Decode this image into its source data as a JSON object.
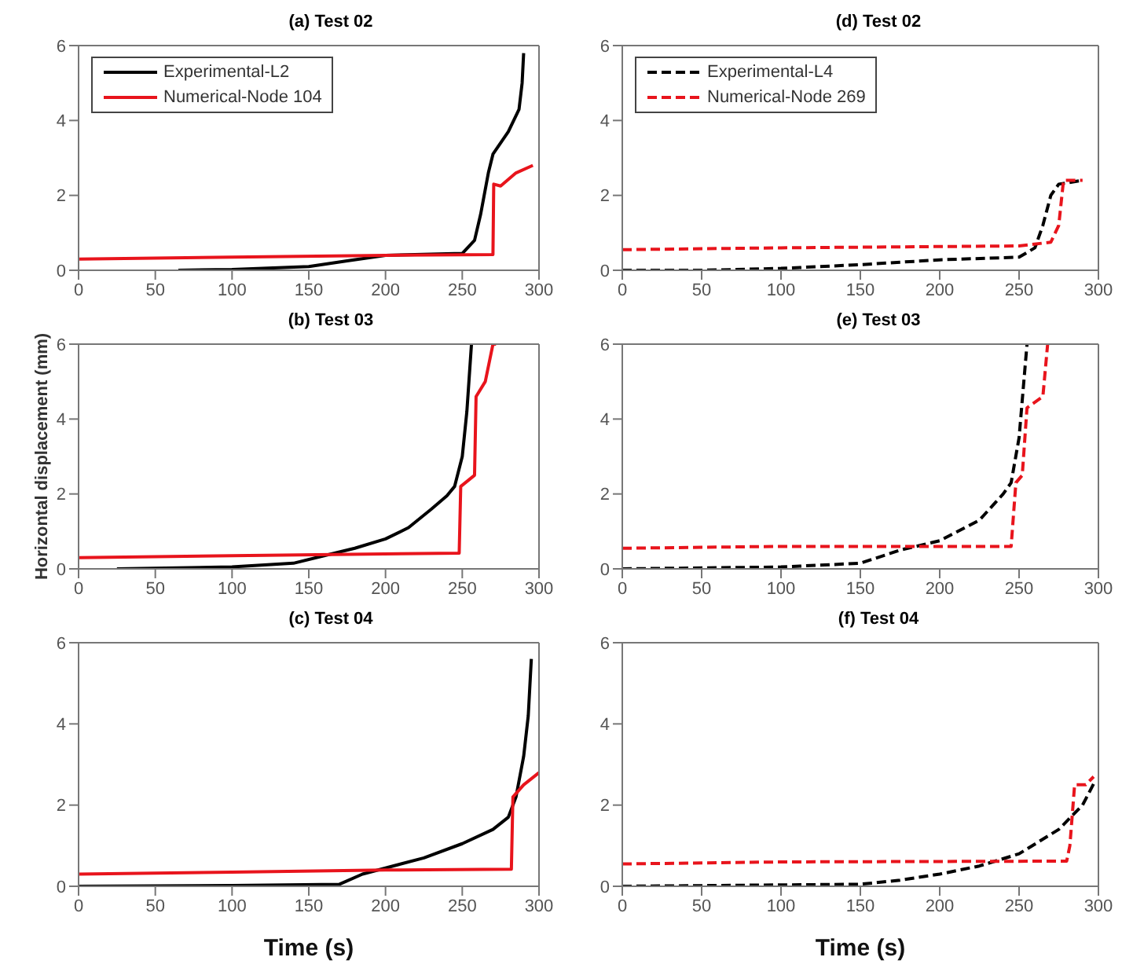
{
  "chart_data": [
    {
      "type": "line",
      "title": "(a) Test 02",
      "xlim": [
        0,
        300
      ],
      "xticks": [
        0,
        50,
        100,
        150,
        200,
        250,
        300
      ],
      "ylim": [
        0,
        6
      ],
      "yticks": [
        0,
        2,
        4,
        6
      ],
      "grid": false,
      "legend": "top left",
      "series": [
        {
          "name": "Experimental-L2",
          "color": "#000000",
          "line_style": "solid",
          "x": [
            65,
            100,
            150,
            175,
            200,
            250,
            258,
            262,
            267,
            270,
            280,
            287,
            289,
            290
          ],
          "values": [
            0,
            0.02,
            0.1,
            0.25,
            0.4,
            0.45,
            0.8,
            1.5,
            2.6,
            3.1,
            3.7,
            4.3,
            5.0,
            5.8
          ]
        },
        {
          "name": "Numerical-Node 104",
          "color": "#e8141c",
          "line_style": "solid",
          "x": [
            0,
            100,
            200,
            270,
            270.5,
            275,
            285,
            296
          ],
          "values": [
            0.3,
            0.35,
            0.4,
            0.42,
            2.3,
            2.25,
            2.6,
            2.8
          ]
        }
      ]
    },
    {
      "type": "line",
      "title": "(b) Test 03",
      "ylabel": "Horizontal displacement (mm)",
      "xlim": [
        0,
        300
      ],
      "xticks": [
        0,
        50,
        100,
        150,
        200,
        250,
        300
      ],
      "ylim": [
        0,
        6
      ],
      "yticks": [
        0,
        2,
        4,
        6
      ],
      "grid": false,
      "series": [
        {
          "color": "#000000",
          "line_style": "solid",
          "x": [
            25,
            100,
            140,
            160,
            180,
            200,
            215,
            230,
            240,
            245,
            250,
            253,
            256
          ],
          "values": [
            0,
            0.05,
            0.15,
            0.35,
            0.55,
            0.8,
            1.1,
            1.6,
            1.95,
            2.2,
            3.0,
            4.2,
            6.0
          ]
        },
        {
          "color": "#e8141c",
          "line_style": "solid",
          "x": [
            0,
            100,
            248,
            249,
            255,
            258,
            259,
            265,
            270,
            272
          ],
          "values": [
            0.3,
            0.35,
            0.42,
            2.2,
            2.4,
            2.5,
            4.6,
            5.0,
            6.0,
            6.0
          ]
        }
      ]
    },
    {
      "type": "line",
      "title": "(c) Test 04",
      "xlabel": "Time (s)",
      "xlim": [
        0,
        300
      ],
      "xticks": [
        0,
        50,
        100,
        150,
        200,
        250,
        300
      ],
      "ylim": [
        0,
        6
      ],
      "yticks": [
        0,
        2,
        4,
        6
      ],
      "grid": false,
      "series": [
        {
          "color": "#000000",
          "line_style": "solid",
          "x": [
            0,
            100,
            170,
            185,
            200,
            225,
            250,
            270,
            280,
            285,
            290,
            293,
            295
          ],
          "values": [
            0,
            0.02,
            0.05,
            0.3,
            0.45,
            0.7,
            1.05,
            1.4,
            1.7,
            2.2,
            3.2,
            4.2,
            5.6
          ]
        },
        {
          "color": "#e8141c",
          "line_style": "solid",
          "x": [
            0,
            100,
            200,
            282,
            283,
            290,
            300
          ],
          "values": [
            0.3,
            0.35,
            0.4,
            0.42,
            2.2,
            2.5,
            2.8
          ]
        }
      ]
    },
    {
      "type": "line",
      "title": "(d) Test 02",
      "xlim": [
        0,
        300
      ],
      "xticks": [
        0,
        50,
        100,
        150,
        200,
        250,
        300
      ],
      "ylim": [
        0,
        6
      ],
      "yticks": [
        0,
        2,
        4,
        6
      ],
      "grid": false,
      "legend": "top left",
      "series": [
        {
          "name": "Experimental-L4",
          "color": "#000000",
          "line_style": "dashed",
          "x": [
            0,
            50,
            100,
            150,
            200,
            250,
            260,
            265,
            270,
            275,
            290
          ],
          "values": [
            0,
            0,
            0.05,
            0.15,
            0.28,
            0.35,
            0.6,
            1.2,
            2.0,
            2.3,
            2.4
          ]
        },
        {
          "name": "Numerical-Node 269",
          "color": "#e8141c",
          "line_style": "dashed",
          "x": [
            0,
            100,
            250,
            270,
            275,
            278,
            290
          ],
          "values": [
            0.55,
            0.6,
            0.65,
            0.75,
            1.2,
            2.4,
            2.4
          ]
        }
      ]
    },
    {
      "type": "line",
      "title": "(e) Test 03",
      "xlim": [
        0,
        300
      ],
      "xticks": [
        0,
        50,
        100,
        150,
        200,
        250,
        300
      ],
      "ylim": [
        0,
        6
      ],
      "yticks": [
        0,
        2,
        4,
        6
      ],
      "grid": false,
      "series": [
        {
          "color": "#000000",
          "line_style": "dashed",
          "x": [
            0,
            100,
            150,
            175,
            200,
            225,
            240,
            245,
            250,
            253,
            255
          ],
          "values": [
            0,
            0.05,
            0.15,
            0.5,
            0.75,
            1.3,
            2.0,
            2.3,
            3.5,
            5.0,
            6.0
          ]
        },
        {
          "color": "#e8141c",
          "line_style": "dashed",
          "x": [
            0,
            100,
            245,
            248,
            252,
            255,
            265,
            268
          ],
          "values": [
            0.55,
            0.6,
            0.6,
            2.3,
            2.5,
            4.3,
            4.6,
            6.0
          ]
        }
      ]
    },
    {
      "type": "line",
      "title": "(f) Test 04",
      "xlabel": "Time (s)",
      "xlim": [
        0,
        300
      ],
      "xticks": [
        0,
        50,
        100,
        150,
        200,
        250,
        300
      ],
      "ylim": [
        0,
        6
      ],
      "yticks": [
        0,
        2,
        4,
        6
      ],
      "grid": false,
      "series": [
        {
          "color": "#000000",
          "line_style": "dashed",
          "x": [
            0,
            150,
            175,
            200,
            225,
            250,
            275,
            290,
            298
          ],
          "values": [
            0,
            0.05,
            0.15,
            0.3,
            0.5,
            0.8,
            1.4,
            2.0,
            2.6
          ]
        },
        {
          "color": "#e8141c",
          "line_style": "dashed",
          "x": [
            0,
            100,
            280,
            282,
            285,
            292,
            297
          ],
          "values": [
            0.55,
            0.6,
            0.62,
            1.0,
            2.5,
            2.5,
            2.7
          ]
        }
      ]
    }
  ]
}
